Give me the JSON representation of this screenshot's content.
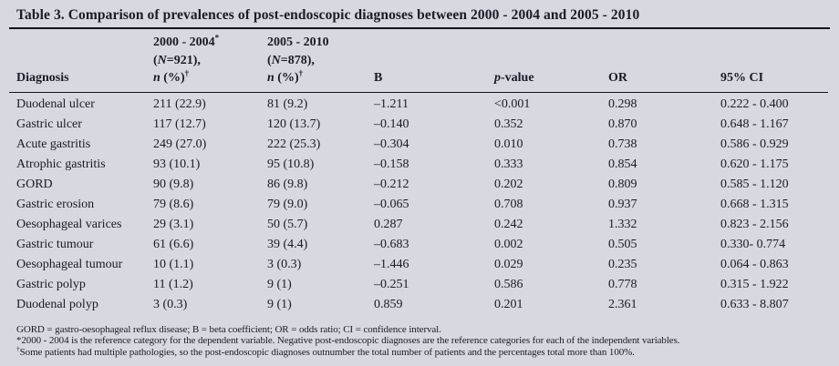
{
  "page": {
    "background_color": "#d6d9e0",
    "text_color": "#1a1b26",
    "rule_color": "#121320"
  },
  "title": "Table 3. Comparison of prevalences of post-endoscopic diagnoses between 2000 - 2004 and 2005 - 2010",
  "table": {
    "header": {
      "diagnosis_label": "Diagnosis",
      "groups": [
        {
          "period": "2000 - 2004",
          "period_sup": "*",
          "n_pre": "(",
          "n_var": "N",
          "n_post": "=921),",
          "stat_var": "n",
          "stat_post": " (%)",
          "stat_sup": "†"
        },
        {
          "period": "2005 - 2010",
          "period_sup": "",
          "n_pre": "(",
          "n_var": "N",
          "n_post": "=878),",
          "stat_var": "n",
          "stat_post": " (%)",
          "stat_sup": "†"
        }
      ],
      "b_label": "B",
      "p_var": "p",
      "p_post": "-value",
      "or_label": "OR",
      "ci_label": "95% CI"
    },
    "rows": [
      {
        "diagnosis": "Duodenal ulcer",
        "n_2004": "211 (22.9)",
        "n_2010": "81 (9.2)",
        "b": "–1.211",
        "p": "<0.001",
        "or": "0.298",
        "ci": "0.222 - 0.400"
      },
      {
        "diagnosis": "Gastric ulcer",
        "n_2004": "117 (12.7)",
        "n_2010": "120 (13.7)",
        "b": "–0.140",
        "p": "0.352",
        "or": "0.870",
        "ci": "0.648 - 1.167"
      },
      {
        "diagnosis": "Acute gastritis",
        "n_2004": "249 (27.0)",
        "n_2010": "222 (25.3)",
        "b": "–0.304",
        "p": "0.010",
        "or": "0.738",
        "ci": "0.586 - 0.929"
      },
      {
        "diagnosis": "Atrophic gastritis",
        "n_2004": "93 (10.1)",
        "n_2010": "95 (10.8)",
        "b": "–0.158",
        "p": "0.333",
        "or": "0.854",
        "ci": "0.620 - 1.175"
      },
      {
        "diagnosis": "GORD",
        "n_2004": "90 (9.8)",
        "n_2010": "86 (9.8)",
        "b": "–0.212",
        "p": "0.202",
        "or": "0.809",
        "ci": "0.585 - 1.120"
      },
      {
        "diagnosis": "Gastric erosion",
        "n_2004": "79 (8.6)",
        "n_2010": "79 (9.0)",
        "b": "–0.065",
        "p": "0.708",
        "or": "0.937",
        "ci": "0.668 - 1.315"
      },
      {
        "diagnosis": "Oesophageal varices",
        "n_2004": "29 (3.1)",
        "n_2010": "50 (5.7)",
        "b": "0.287",
        "p": "0.242",
        "or": "1.332",
        "ci": "0.823 - 2.156"
      },
      {
        "diagnosis": "Gastric tumour",
        "n_2004": "61 (6.6)",
        "n_2010": "39 (4.4)",
        "b": "–0.683",
        "p": "0.002",
        "or": "0.505",
        "ci": "0.330- 0.774"
      },
      {
        "diagnosis": "Oesophageal tumour",
        "n_2004": "10 (1.1)",
        "n_2010": "3 (0.3)",
        "b": "–1.446",
        "p": "0.029",
        "or": "0.235",
        "ci": "0.064 - 0.863"
      },
      {
        "diagnosis": "Gastric polyp",
        "n_2004": "11 (1.2)",
        "n_2010": "9 (1)",
        "b": "–0.251",
        "p": "0.586",
        "or": "0.778",
        "ci": "0.315 - 1.922"
      },
      {
        "diagnosis": "Duodenal polyp",
        "n_2004": "3 (0.3)",
        "n_2010": "9 (1)",
        "b": "0.859",
        "p": "0.201",
        "or": "2.361",
        "ci": "0.633 - 8.807"
      }
    ]
  },
  "footnotes": [
    {
      "marker": "",
      "text": "GORD = gastro-oesophageal reflux disease; B = beta coefficient; OR = odds ratio; CI = confidence interval."
    },
    {
      "marker": "",
      "text": "*2000 - 2004 is the reference category for the dependent variable. Negative post-endoscopic diagnoses are the reference categories for each of the independent variables."
    },
    {
      "marker": "†",
      "text": "Some patients had multiple pathologies, so the post-endoscopic diagnoses outnumber the total number of patients and the percentages total more than 100%."
    }
  ]
}
